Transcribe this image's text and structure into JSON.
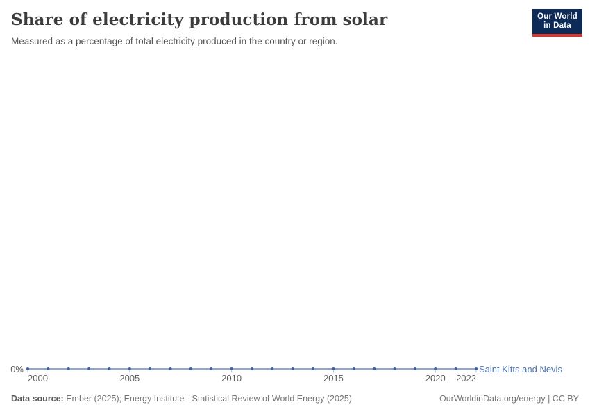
{
  "header": {
    "title": "Share of electricity production from solar",
    "subtitle": "Measured as a percentage of total electricity produced in the country or region.",
    "logo": {
      "line1": "Our World",
      "line2": "in Data"
    }
  },
  "chart_data": {
    "type": "line",
    "title": "Share of electricity production from solar",
    "subtitle": "Measured as a percentage of total electricity produced in the country or region.",
    "xlabel": "",
    "ylabel": "",
    "unit": "%",
    "x": [
      2000,
      2001,
      2002,
      2003,
      2004,
      2005,
      2006,
      2007,
      2008,
      2009,
      2010,
      2011,
      2012,
      2013,
      2014,
      2015,
      2016,
      2017,
      2018,
      2019,
      2020,
      2021,
      2022
    ],
    "series": [
      {
        "name": "Saint Kitts and Nevis",
        "values": [
          0,
          0,
          0,
          0,
          0,
          0,
          0,
          0,
          0,
          0,
          0,
          0,
          0,
          0,
          0,
          0,
          0,
          0,
          0,
          0,
          0,
          0,
          0
        ]
      }
    ],
    "xlim": [
      2000,
      2022
    ],
    "ylim": [
      0,
      0
    ],
    "x_tick_labels": [
      "2000",
      "2005",
      "2010",
      "2015",
      "2020",
      "2022"
    ],
    "y_tick_labels": [
      "0%"
    ],
    "grid": false,
    "legend_position": "right-of-line-end",
    "markers": "points-on-line"
  },
  "footer": {
    "source_label": "Data source:",
    "source_value": "Ember (2025); Energy Institute - Statistical Review of World Energy (2025)",
    "rights": "OurWorldinData.org/energy | CC BY"
  },
  "colors": {
    "line": "#6b8ac1",
    "point": "#3c61a7",
    "tick": "#aebdd6",
    "series_label_text": "#4d72b0",
    "axis_text": "#5f5f5f",
    "title_text": "#3d3d3d",
    "subtitle_text": "#555555",
    "footer_text": "#767676",
    "logo_background": "#0e2a57",
    "logo_accent_red": "#e0312a",
    "background": "#ffffff"
  }
}
